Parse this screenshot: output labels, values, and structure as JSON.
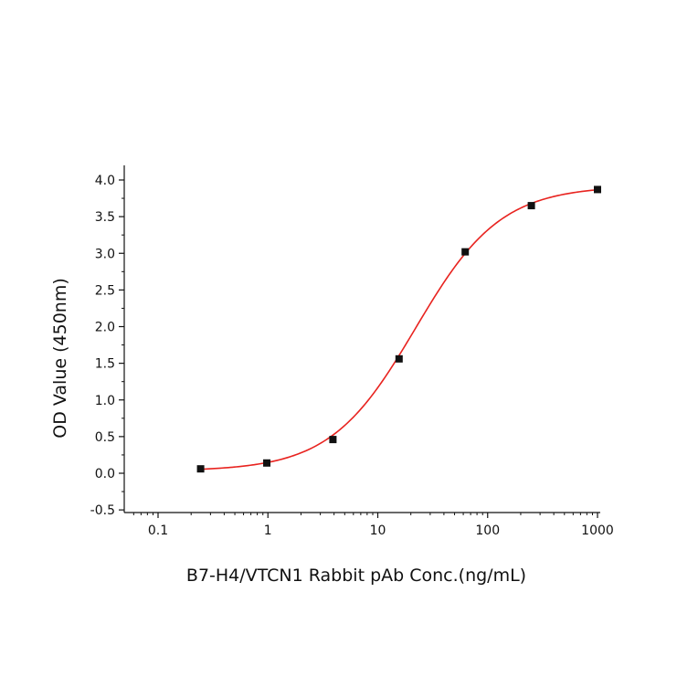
{
  "chart_data": {
    "type": "scatter",
    "title": "",
    "xlabel": "B7-H4/VTCN1 Rabbit pAb Conc.(ng/mL)",
    "ylabel": "OD Value (450nm)",
    "x_scale": "log",
    "xlim": [
      0.05,
      1100
    ],
    "ylim": [
      -0.5,
      4.2
    ],
    "x_ticks": [
      {
        "value": 0.1,
        "label": "0.1"
      },
      {
        "value": 1,
        "label": "1"
      },
      {
        "value": 10,
        "label": "10"
      },
      {
        "value": 100,
        "label": "100"
      },
      {
        "value": 1000,
        "label": "1000"
      }
    ],
    "y_ticks": [
      {
        "value": 4.0,
        "label": "4.0"
      },
      {
        "value": 3.5,
        "label": "3.5"
      },
      {
        "value": 3.0,
        "label": "3.0"
      },
      {
        "value": 2.5,
        "label": "2.5"
      },
      {
        "value": 2.0,
        "label": "2.0"
      },
      {
        "value": 1.5,
        "label": "1.5"
      },
      {
        "value": 1.0,
        "label": "1.0"
      },
      {
        "value": 0.5,
        "label": "0.5"
      },
      {
        "value": 0.0,
        "label": "0.0"
      },
      {
        "value": -0.5,
        "label": "-0.5"
      }
    ],
    "grid": false,
    "legend": "none",
    "series": [
      {
        "kind": "points",
        "color": "#111111",
        "x": [
          0.244,
          0.977,
          3.906,
          15.625,
          62.5,
          250,
          1000
        ],
        "y": [
          0.06,
          0.14,
          0.46,
          1.56,
          3.02,
          3.65,
          3.87
        ]
      },
      {
        "kind": "fit-curve",
        "model": "4PL",
        "color": "#e8231f",
        "params": {
          "bottom": 0.03,
          "top": 3.92,
          "ec50": 22,
          "hill": 1.12
        },
        "x_range": [
          0.244,
          1000
        ]
      }
    ]
  }
}
